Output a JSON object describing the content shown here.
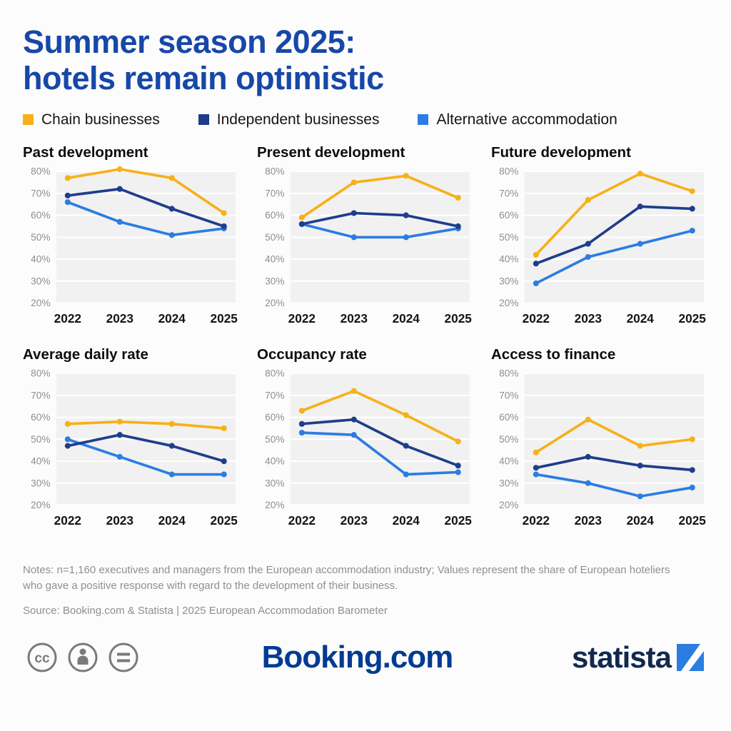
{
  "header": {
    "title_line1": "Summer season 2025:",
    "title_line2": "hotels remain optimistic"
  },
  "legend": [
    {
      "label": "Chain businesses",
      "color": "#F6B119"
    },
    {
      "label": "Independent businesses",
      "color": "#1F3D8C"
    },
    {
      "label": "Alternative accommodation",
      "color": "#2B7DE1"
    }
  ],
  "chart_data": [
    {
      "type": "line",
      "title": "Past development",
      "categories": [
        "2022",
        "2023",
        "2024",
        "2025"
      ],
      "ylim": [
        20,
        80
      ],
      "ylabel": "%",
      "series": [
        {
          "name": "Chain businesses",
          "values": [
            77,
            81,
            77,
            61
          ]
        },
        {
          "name": "Independent businesses",
          "values": [
            69,
            72,
            63,
            55
          ]
        },
        {
          "name": "Alternative accommodation",
          "values": [
            66,
            57,
            51,
            54
          ]
        }
      ]
    },
    {
      "type": "line",
      "title": "Present development",
      "categories": [
        "2022",
        "2023",
        "2024",
        "2025"
      ],
      "ylim": [
        20,
        80
      ],
      "ylabel": "%",
      "series": [
        {
          "name": "Chain businesses",
          "values": [
            59,
            75,
            78,
            68
          ]
        },
        {
          "name": "Independent businesses",
          "values": [
            56,
            61,
            60,
            55
          ]
        },
        {
          "name": "Alternative accommodation",
          "values": [
            56,
            50,
            50,
            54
          ]
        }
      ]
    },
    {
      "type": "line",
      "title": "Future development",
      "categories": [
        "2022",
        "2023",
        "2024",
        "2025"
      ],
      "ylim": [
        20,
        80
      ],
      "ylabel": "%",
      "series": [
        {
          "name": "Chain businesses",
          "values": [
            42,
            67,
            79,
            71
          ]
        },
        {
          "name": "Independent businesses",
          "values": [
            38,
            47,
            64,
            63
          ]
        },
        {
          "name": "Alternative accommodation",
          "values": [
            29,
            41,
            47,
            53
          ]
        }
      ]
    },
    {
      "type": "line",
      "title": "Average daily rate",
      "categories": [
        "2022",
        "2023",
        "2024",
        "2025"
      ],
      "ylim": [
        20,
        80
      ],
      "ylabel": "%",
      "series": [
        {
          "name": "Chain businesses",
          "values": [
            57,
            58,
            57,
            55
          ]
        },
        {
          "name": "Independent businesses",
          "values": [
            47,
            52,
            47,
            40
          ]
        },
        {
          "name": "Alternative accommodation",
          "values": [
            50,
            42,
            34,
            34
          ]
        }
      ]
    },
    {
      "type": "line",
      "title": "Occupancy rate",
      "categories": [
        "2022",
        "2023",
        "2024",
        "2025"
      ],
      "ylim": [
        20,
        80
      ],
      "ylabel": "%",
      "series": [
        {
          "name": "Chain businesses",
          "values": [
            63,
            72,
            61,
            49
          ]
        },
        {
          "name": "Independent businesses",
          "values": [
            57,
            59,
            47,
            38
          ]
        },
        {
          "name": "Alternative accommodation",
          "values": [
            53,
            52,
            34,
            35
          ]
        }
      ]
    },
    {
      "type": "line",
      "title": "Access to finance",
      "categories": [
        "2022",
        "2023",
        "2024",
        "2025"
      ],
      "ylim": [
        20,
        80
      ],
      "ylabel": "%",
      "series": [
        {
          "name": "Chain businesses",
          "values": [
            44,
            59,
            47,
            50
          ]
        },
        {
          "name": "Independent businesses",
          "values": [
            37,
            42,
            38,
            36
          ]
        },
        {
          "name": "Alternative accommodation",
          "values": [
            34,
            30,
            24,
            28
          ]
        }
      ]
    }
  ],
  "notes": {
    "text": "Notes: n=1,160 executives and managers from the European accommodation industry; Values represent the share of European hoteliers who gave a positive response with regard to the development of their business."
  },
  "source": {
    "text": "Source: Booking.com & Statista | 2025 European Accommodation Barometer"
  },
  "footer": {
    "booking_text": "Booking.com",
    "statista_text": "statista",
    "license_icons": [
      "cc-icon",
      "attribution-icon",
      "equal-icon"
    ]
  }
}
